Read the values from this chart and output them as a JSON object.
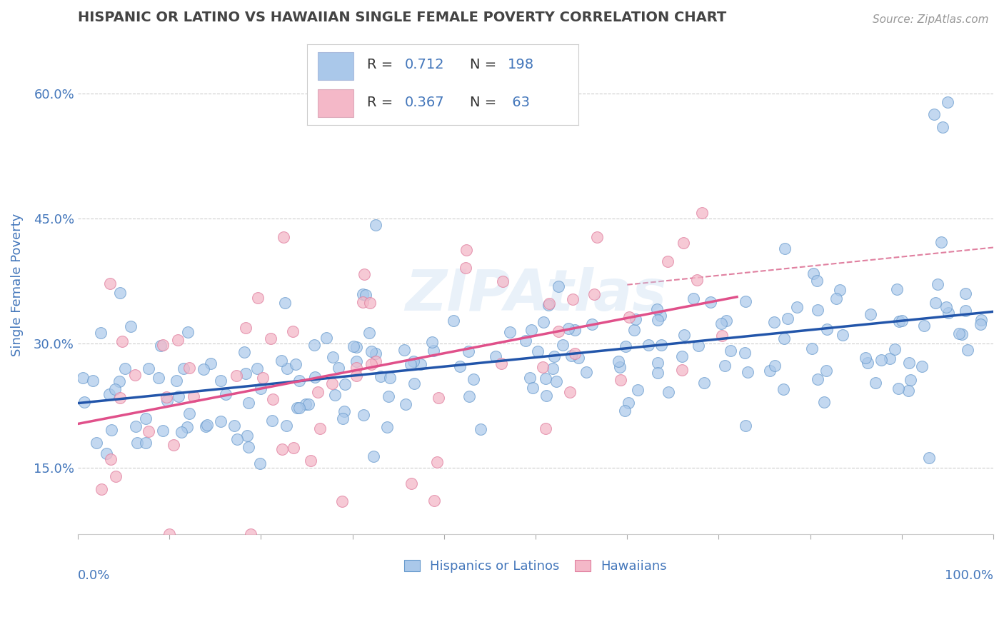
{
  "title": "HISPANIC OR LATINO VS HAWAIIAN SINGLE FEMALE POVERTY CORRELATION CHART",
  "source": "Source: ZipAtlas.com",
  "ylabel": "Single Female Poverty",
  "xlim": [
    0.0,
    1.0
  ],
  "ylim": [
    0.07,
    0.67
  ],
  "yticks": [
    0.15,
    0.3,
    0.45,
    0.6
  ],
  "ytick_labels": [
    "15.0%",
    "30.0%",
    "45.0%",
    "60.0%"
  ],
  "scatter_blue_color": "#aac8ea",
  "scatter_blue_edge": "#6699cc",
  "scatter_pink_color": "#f4b8c8",
  "scatter_pink_edge": "#e080a0",
  "trendline_blue_color": "#2255aa",
  "trendline_pink_color": "#e0508a",
  "trendline_conf_color": "#e080a0",
  "watermark": "ZIPAtlas",
  "R_blue": 0.712,
  "N_blue": 198,
  "R_pink": 0.367,
  "N_pink": 63,
  "background_color": "#ffffff",
  "grid_color": "#cccccc",
  "title_color": "#444444",
  "axis_label_color": "#4477bb",
  "legend_box_color": "#aac8ea",
  "legend_pink_box_color": "#f4b8c8"
}
